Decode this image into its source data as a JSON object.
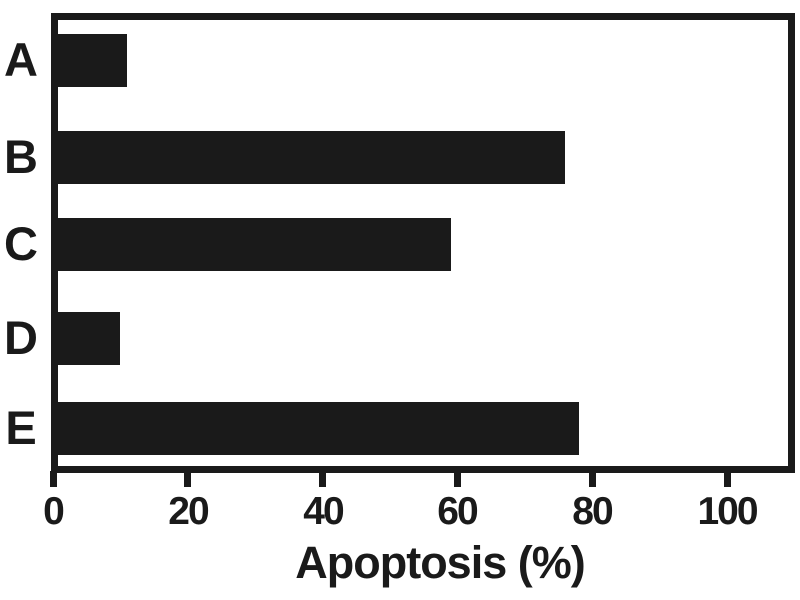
{
  "chart_data": {
    "type": "bar",
    "orientation": "horizontal",
    "title": "",
    "xlabel": "Apoptosis (%)",
    "ylabel": "",
    "categories": [
      "A",
      "B",
      "C",
      "D",
      "E"
    ],
    "values": [
      11,
      76,
      59,
      10,
      78
    ],
    "x_ticks": [
      "0",
      "20",
      "40",
      "60",
      "80",
      "100"
    ],
    "x_tick_values": [
      0,
      20,
      40,
      60,
      80,
      100
    ],
    "xlim": [
      0,
      110
    ],
    "grid": false,
    "legend": "none",
    "bar_color": "#1a1a1a",
    "axis_color": "#1a1a1a",
    "background_color": "#ffffff"
  }
}
